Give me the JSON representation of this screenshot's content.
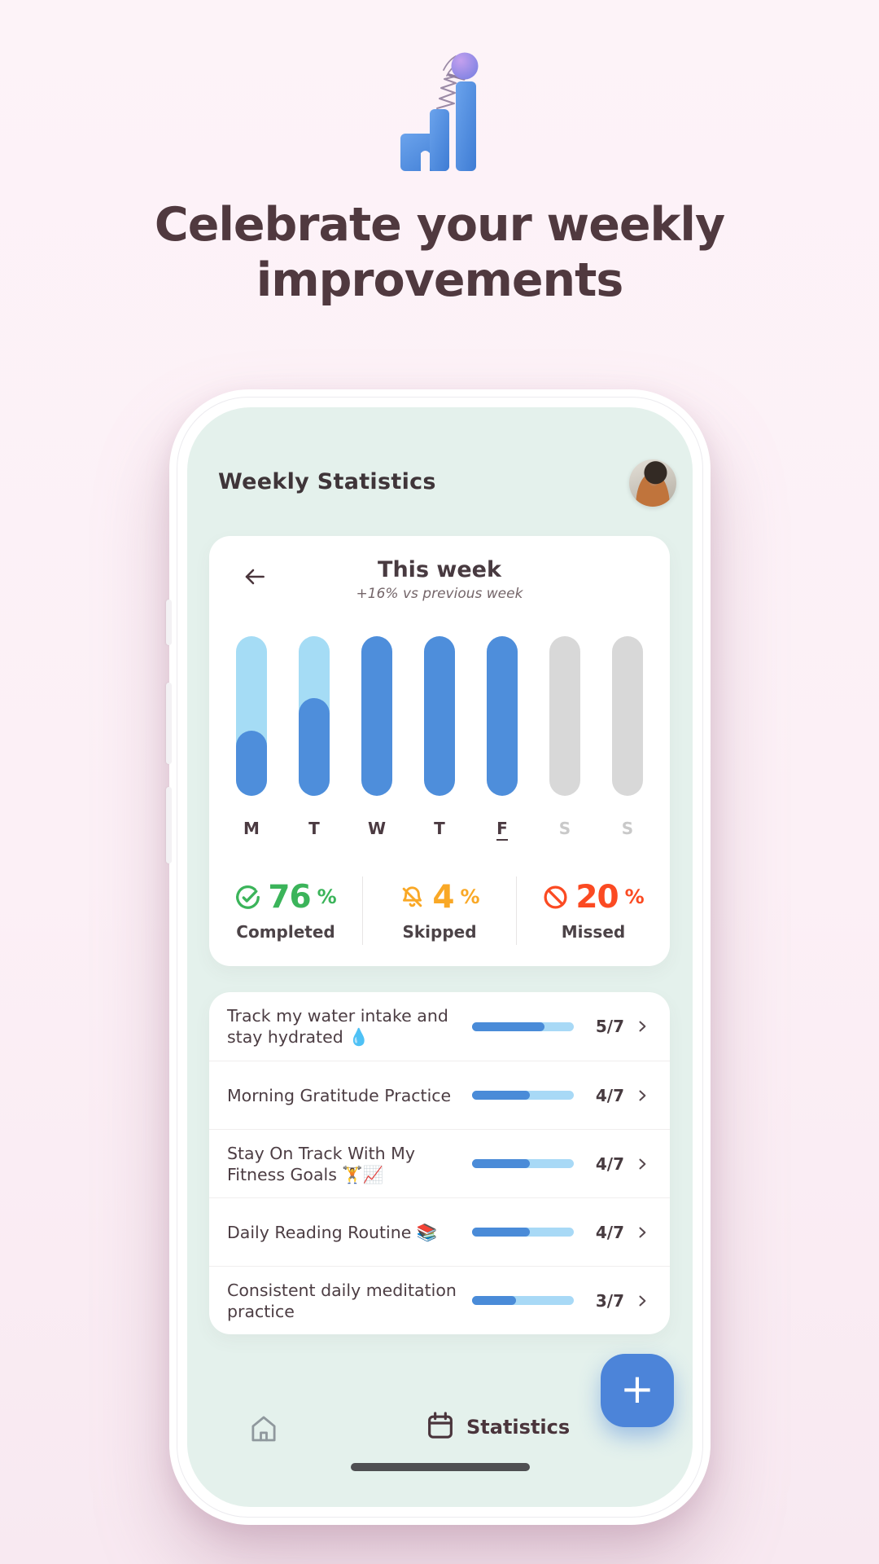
{
  "page": {
    "background_color": "#fcf0f6",
    "headline_lines": [
      "Celebrate your weekly",
      "improvements"
    ]
  },
  "screen": {
    "title": "Weekly Statistics",
    "chart_data": {
      "type": "bar",
      "title": "This week",
      "subtitle": "+16% vs previous week",
      "ylim": [
        0,
        1
      ],
      "categories": [
        "M",
        "T",
        "W",
        "T",
        "F",
        "S",
        "S"
      ],
      "days": [
        {
          "label": "M",
          "fill": 0.41,
          "state": "partial"
        },
        {
          "label": "T",
          "fill": 0.61,
          "state": "partial"
        },
        {
          "label": "W",
          "fill": 1.0,
          "state": "full"
        },
        {
          "label": "T",
          "fill": 1.0,
          "state": "full"
        },
        {
          "label": "F",
          "fill": 1.0,
          "state": "full",
          "current": true
        },
        {
          "label": "S",
          "fill": 0.0,
          "state": "future"
        },
        {
          "label": "S",
          "fill": 0.0,
          "state": "future"
        }
      ],
      "colors": {
        "fill": "#4e8edb",
        "track": "#a5dcf5",
        "future": "#d8d8d8"
      },
      "legend": "off",
      "grid": "off"
    },
    "stats": [
      {
        "icon": "check-circle-icon",
        "value": "76",
        "unit": "%",
        "label": "Completed",
        "color": "#3bb45a"
      },
      {
        "icon": "bell-slash-icon",
        "value": "4",
        "unit": "%",
        "label": "Skipped",
        "color": "#f9a826"
      },
      {
        "icon": "prohibited-icon",
        "value": "20",
        "unit": "%",
        "label": "Missed",
        "color": "#fb4a22"
      }
    ],
    "habits": [
      {
        "name": "Track my water intake and stay hydrated 💧",
        "done": 5,
        "total": 7,
        "count_label": "5/7"
      },
      {
        "name": "Morning Gratitude Practice",
        "done": 4,
        "total": 7,
        "count_label": "4/7"
      },
      {
        "name": "Stay On Track With My Fitness Goals 🏋️📈",
        "done": 4,
        "total": 7,
        "count_label": "4/7"
      },
      {
        "name": "Daily Reading Routine 📚",
        "done": 4,
        "total": 7,
        "count_label": "4/7"
      },
      {
        "name": "Consistent daily meditation practice",
        "done": 3,
        "total": 7,
        "count_label": "3/7"
      }
    ],
    "progress_colors": {
      "fill": "#4a8bd8",
      "track": "#a8d9f6"
    },
    "nav": {
      "statistics_label": "Statistics",
      "fab_label": "+"
    }
  }
}
